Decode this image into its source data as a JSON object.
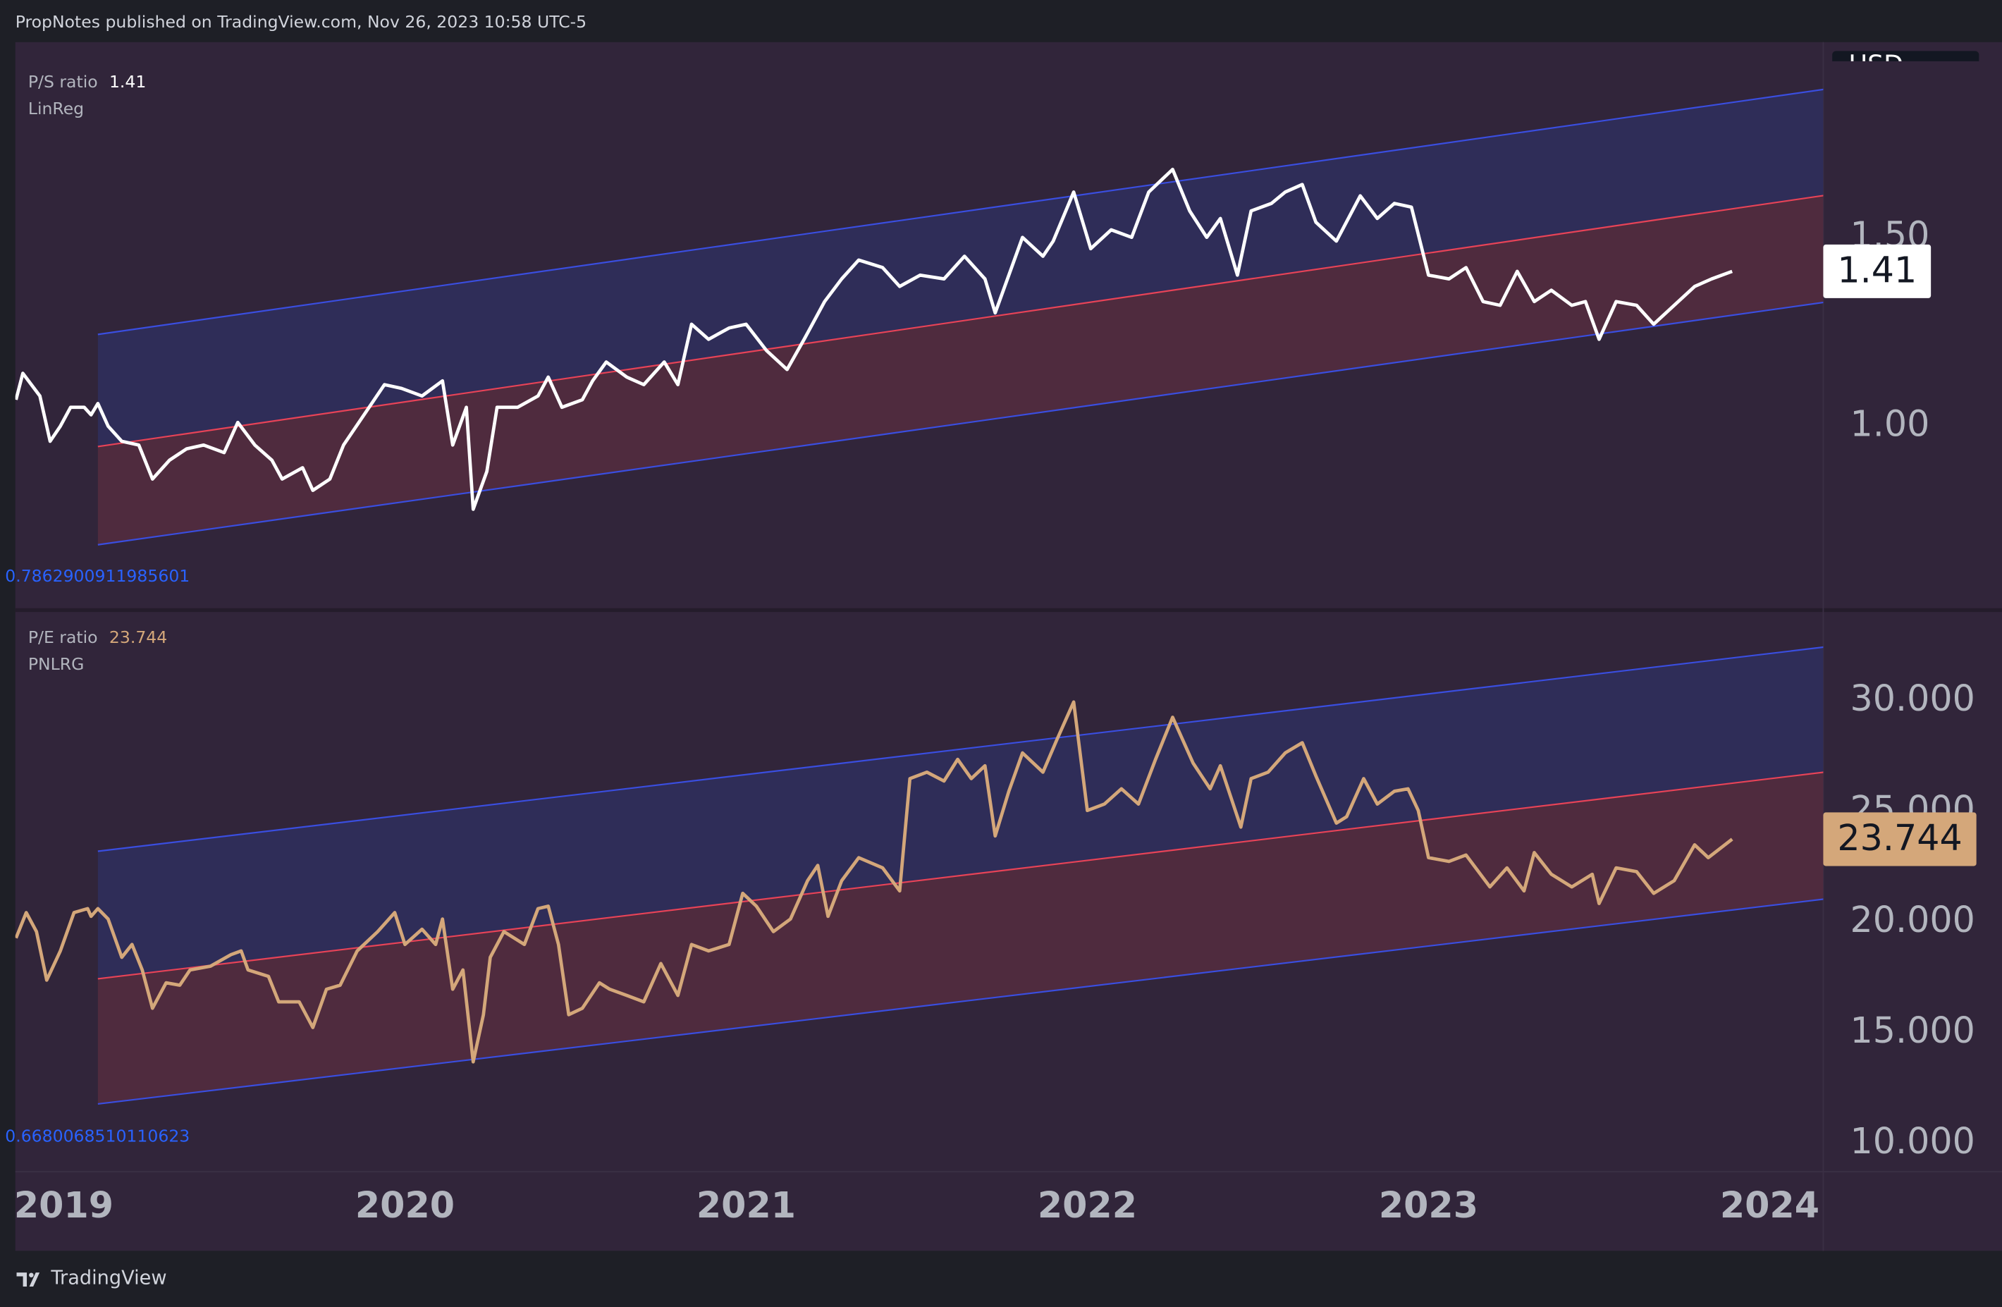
{
  "header": "PropNotes published on TradingView.com, Nov 26, 2023 10:58 UTC-5",
  "footer": "TradingView",
  "currency": "USD",
  "chart_data": [
    {
      "type": "line",
      "title": "P/S ratio",
      "subtitle": "LinReg",
      "annotation": "0.7862900911985601",
      "color": "#ffffff",
      "x": [
        2018.86,
        2018.88,
        2018.93,
        2018.96,
        2018.99,
        2019.02,
        2019.06,
        2019.08,
        2019.1,
        2019.13,
        2019.17,
        2019.22,
        2019.26,
        2019.31,
        2019.36,
        2019.41,
        2019.47,
        2019.51,
        2019.56,
        2019.61,
        2019.64,
        2019.7,
        2019.73,
        2019.78,
        2019.82,
        2019.88,
        2019.94,
        2019.99,
        2020.05,
        2020.11,
        2020.14,
        2020.18,
        2020.2,
        2020.24,
        2020.27,
        2020.33,
        2020.39,
        2020.42,
        2020.46,
        2020.52,
        2020.55,
        2020.59,
        2020.65,
        2020.7,
        2020.76,
        2020.8,
        2020.84,
        2020.89,
        2020.95,
        2021.0,
        2021.06,
        2021.12,
        2021.17,
        2021.23,
        2021.28,
        2021.33,
        2021.4,
        2021.45,
        2021.51,
        2021.58,
        2021.64,
        2021.7,
        2021.73,
        2021.81,
        2021.87,
        2021.9,
        2021.96,
        2022.01,
        2022.07,
        2022.13,
        2022.18,
        2022.25,
        2022.3,
        2022.35,
        2022.39,
        2022.44,
        2022.48,
        2022.54,
        2022.58,
        2022.63,
        2022.67,
        2022.73,
        2022.8,
        2022.85,
        2022.9,
        2022.95,
        2023.0,
        2023.06,
        2023.11,
        2023.16,
        2023.21,
        2023.26,
        2023.31,
        2023.36,
        2023.42,
        2023.46,
        2023.5,
        2023.55,
        2023.61,
        2023.66,
        2023.72,
        2023.78,
        2023.83,
        2023.89
      ],
      "values": [
        1.07,
        1.14,
        1.08,
        0.96,
        1.0,
        1.05,
        1.05,
        1.03,
        1.06,
        1.0,
        0.96,
        0.95,
        0.86,
        0.91,
        0.94,
        0.95,
        0.93,
        1.01,
        0.95,
        0.91,
        0.86,
        0.89,
        0.83,
        0.86,
        0.95,
        1.03,
        1.11,
        1.1,
        1.08,
        1.12,
        0.95,
        1.05,
        0.78,
        0.88,
        1.05,
        1.05,
        1.08,
        1.13,
        1.05,
        1.07,
        1.12,
        1.17,
        1.13,
        1.11,
        1.17,
        1.11,
        1.27,
        1.23,
        1.26,
        1.27,
        1.2,
        1.15,
        1.23,
        1.33,
        1.39,
        1.44,
        1.42,
        1.37,
        1.4,
        1.39,
        1.45,
        1.39,
        1.3,
        1.5,
        1.45,
        1.49,
        1.62,
        1.47,
        1.52,
        1.5,
        1.62,
        1.68,
        1.57,
        1.5,
        1.55,
        1.4,
        1.57,
        1.59,
        1.62,
        1.64,
        1.54,
        1.49,
        1.61,
        1.55,
        1.59,
        1.58,
        1.4,
        1.39,
        1.42,
        1.33,
        1.32,
        1.41,
        1.33,
        1.36,
        1.32,
        1.33,
        1.23,
        1.33,
        1.32,
        1.27,
        1.32,
        1.37,
        1.39,
        1.41
      ],
      "channel": {
        "x": [
          2019.1,
          2024.16
        ],
        "upper": [
          1.243,
          1.892
        ],
        "middle": [
          0.946,
          1.611
        ],
        "lower": [
          0.686,
          1.328
        ],
        "band_color": "#3a4ee0",
        "mid_color": "#e84357",
        "upper_fill": "#2f2d58",
        "lower_fill": "#4f2b3e"
      },
      "xlim": [
        2018.858,
        2024.157
      ],
      "ylim": [
        0.54,
        2.017
      ],
      "yticks": [
        {
          "value": 1,
          "label": "1.00"
        },
        {
          "value": 1.5,
          "label": "1.50"
        }
      ]
    },
    {
      "type": "line",
      "title": "P/E ratio",
      "subtitle": "PNLRG",
      "annotation": "0.6680068510110623",
      "color": "#d4a77a",
      "x": [
        2018.86,
        2018.89,
        2018.92,
        2018.95,
        2018.99,
        2019.03,
        2019.07,
        2019.08,
        2019.1,
        2019.13,
        2019.17,
        2019.2,
        2019.23,
        2019.26,
        2019.3,
        2019.34,
        2019.37,
        2019.43,
        2019.49,
        2019.52,
        2019.54,
        2019.6,
        2019.63,
        2019.69,
        2019.73,
        2019.77,
        2019.81,
        2019.86,
        2019.92,
        2019.97,
        2020.0,
        2020.05,
        2020.09,
        2020.11,
        2020.14,
        2020.17,
        2020.2,
        2020.23,
        2020.25,
        2020.29,
        2020.35,
        2020.39,
        2020.42,
        2020.45,
        2020.48,
        2020.52,
        2020.57,
        2020.6,
        2020.65,
        2020.7,
        2020.75,
        2020.8,
        2020.84,
        2020.89,
        2020.95,
        2020.99,
        2021.03,
        2021.08,
        2021.13,
        2021.18,
        2021.21,
        2021.24,
        2021.28,
        2021.33,
        2021.4,
        2021.45,
        2021.48,
        2021.53,
        2021.58,
        2021.62,
        2021.66,
        2021.7,
        2021.73,
        2021.77,
        2021.81,
        2021.87,
        2021.91,
        2021.96,
        2022.0,
        2022.05,
        2022.1,
        2022.15,
        2022.2,
        2022.25,
        2022.31,
        2022.36,
        2022.39,
        2022.45,
        2022.48,
        2022.53,
        2022.58,
        2022.63,
        2022.67,
        2022.73,
        2022.76,
        2022.81,
        2022.85,
        2022.9,
        2022.94,
        2022.97,
        2023.0,
        2023.06,
        2023.11,
        2023.18,
        2023.23,
        2023.28,
        2023.31,
        2023.36,
        2023.42,
        2023.48,
        2023.5,
        2023.55,
        2023.61,
        2023.66,
        2023.72,
        2023.78,
        2023.82,
        2023.89
      ],
      "values": [
        19.28,
        20.43,
        19.57,
        17.38,
        18.7,
        20.43,
        20.61,
        20.26,
        20.61,
        20.14,
        18.41,
        18.99,
        17.84,
        16.11,
        17.26,
        17.15,
        17.84,
        18.01,
        18.53,
        18.7,
        17.84,
        17.55,
        16.4,
        16.4,
        15.24,
        16.97,
        17.15,
        18.7,
        19.57,
        20.43,
        18.99,
        19.68,
        18.99,
        20.14,
        16.97,
        17.84,
        13.69,
        15.82,
        18.41,
        19.57,
        18.99,
        20.61,
        20.72,
        18.99,
        15.82,
        16.11,
        17.26,
        16.97,
        16.69,
        16.4,
        18.13,
        16.69,
        18.99,
        18.7,
        18.99,
        21.3,
        20.72,
        19.57,
        20.14,
        21.87,
        22.56,
        20.26,
        21.87,
        22.91,
        22.45,
        21.41,
        26.48,
        26.77,
        26.37,
        27.35,
        26.48,
        27.06,
        23.89,
        25.91,
        27.64,
        26.77,
        28.21,
        29.94,
        25.04,
        25.33,
        26.02,
        25.33,
        27.35,
        29.25,
        27.18,
        26.02,
        27.06,
        24.29,
        26.48,
        26.77,
        27.64,
        28.1,
        26.6,
        24.47,
        24.76,
        26.48,
        25.33,
        25.91,
        26.02,
        25.04,
        22.91,
        22.74,
        23.03,
        21.59,
        22.45,
        21.41,
        23.14,
        22.16,
        21.59,
        22.16,
        20.84,
        22.45,
        22.28,
        21.3,
        21.87,
        23.49,
        22.91,
        23.744
      ],
      "channel": {
        "x": [
          2019.1,
          2024.16
        ],
        "upper": [
          23.2,
          32.42
        ],
        "middle": [
          17.44,
          26.77
        ],
        "lower": [
          11.79,
          21.04
        ],
        "band_color": "#3a4ee0",
        "mid_color": "#e84357",
        "upper_fill": "#2f2d58",
        "lower_fill": "#4f2b3e"
      },
      "xlim": [
        2018.858,
        2024.157
      ],
      "ylim": [
        8.73,
        33.57
      ],
      "yticks": [
        {
          "value": 10,
          "label": "10.000"
        },
        {
          "value": 15,
          "label": "15.000"
        },
        {
          "value": 20,
          "label": "20.000"
        },
        {
          "value": 25,
          "label": "25.000"
        },
        {
          "value": 30,
          "label": "30.000"
        }
      ],
      "xticks": [
        2019,
        2020,
        2021,
        2022,
        2023,
        2024
      ]
    }
  ]
}
